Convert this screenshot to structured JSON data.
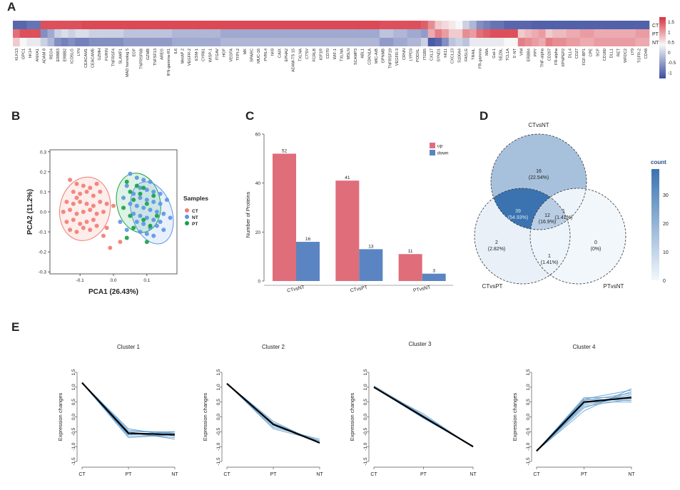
{
  "panels": {
    "a": "A",
    "b": "B",
    "c": "C",
    "d": "D",
    "e": "E"
  },
  "colors": {
    "ct": "#f07c74",
    "nt": "#5b95e6",
    "pt": "#16a046",
    "up": "#e06d7a",
    "down": "#5b85c2",
    "heat_high": "#d8323f",
    "heat_mid": "#f7f7f7",
    "heat_low": "#3b4da0",
    "venn_low": "#f2f7fc",
    "venn_high": "#3a73b0",
    "cluster_line": "#4a8ec4",
    "cluster_mean": "#000000"
  },
  "heatmap": {
    "rows": [
      "CT",
      "PT",
      "NT"
    ],
    "legend_ticks": [
      "1.5",
      "1",
      "0.5",
      "0",
      "-0.5",
      "-1"
    ],
    "columns": [
      "KLK13",
      "GPC1",
      "hK14",
      "ANXA1",
      "ADAM 8",
      "REG4",
      "ERBB3",
      "ERBB2",
      "ICOSLG",
      "LYN",
      "CEACAM1",
      "CEACAM5",
      "GZMH",
      "FURIN",
      "TNFRSF4",
      "SLAMF1",
      "MAD homolog 5",
      "EGF",
      "TNFRSF6B",
      "GZMB",
      "TNFSF13",
      "AREG",
      "IFN-gamma-R1",
      "IL6",
      "MetAP 2",
      "VEGFR-2",
      "ESM-1",
      "CYR61",
      "WISP-1",
      "ITGAV",
      "HGF",
      "VEGFA",
      "TFPI-2",
      "MK",
      "SPARC",
      "MUC-16",
      "PVRL4",
      "hK8",
      "CAIX",
      "EPHA2",
      "ADAM-TS 15",
      "TXLNA",
      "CTSV",
      "FCRLB",
      "IGF1R",
      "CD70",
      "WIF-1",
      "TXLNA",
      "MSLN",
      "SCAMP3",
      "ABL1",
      "CDKN1A",
      "MIC-A/B",
      "GPNMB",
      "TNFRSF19",
      "VEGFR-3",
      "CRNN",
      "LYPD3",
      "PODXL",
      "ITGB5",
      "CXL17",
      "SYND1",
      "hK11",
      "CXCL13",
      "S100A4",
      "FASLG",
      "TRAIL",
      "FR-gamma",
      "MIA",
      "Gal-1",
      "SEZ6L",
      "TCL1A",
      "5'-NT",
      "VIM",
      "ERBB4",
      "PPY",
      "TNF-alpha",
      "CD207",
      "FR-alpha",
      "XPNPEP2",
      "DLL4",
      "CD27",
      "FGF-BP1",
      "CPE",
      "SCF",
      "CD160",
      "DLL1",
      "RET",
      "WFDC2",
      "LY9",
      "TGFR-2",
      "CD48"
    ],
    "values": [
      [
        -1.1,
        -1.1,
        -1.0,
        -1.0,
        1.1,
        1.1,
        1.1,
        1.1,
        1.1,
        1.1,
        1.15,
        1.15,
        1.15,
        1.15,
        1.15,
        1.15,
        1.15,
        1.15,
        1.15,
        1.15,
        1.15,
        1.15,
        1.15,
        1.15,
        1.15,
        1.15,
        1.15,
        1.15,
        1.15,
        1.15,
        1.15,
        1.15,
        1.15,
        1.15,
        1.15,
        1.15,
        1.15,
        1.15,
        1.15,
        1.15,
        1.15,
        1.15,
        1.15,
        1.15,
        1.15,
        1.15,
        1.15,
        1.15,
        1.15,
        1.15,
        1.15,
        1.15,
        1.15,
        1.1,
        1.1,
        1.1,
        1.1,
        1.1,
        1.1,
        1.0,
        0.7,
        0.3,
        0.2,
        0.1,
        0.0,
        -0.3,
        -0.5,
        -0.8,
        -0.9,
        -1.0,
        -1.0,
        -1.1,
        -1.1,
        -1.1,
        -1.1,
        -1.15,
        -1.15,
        -1.15,
        -1.15,
        -1.15,
        -1.15,
        -1.15,
        -1.15,
        -1.15,
        -1.15,
        -1.15,
        -1.15,
        -1.15,
        -1.15,
        -1.15,
        -1.15,
        -1.15
      ],
      [
        0.9,
        1.1,
        1.1,
        1.1,
        -0.8,
        -0.6,
        -0.3,
        -0.2,
        -0.3,
        -0.2,
        -0.2,
        -0.3,
        -0.3,
        -0.3,
        -0.3,
        -0.3,
        -0.4,
        -0.4,
        -0.4,
        -0.4,
        -0.4,
        -0.4,
        -0.4,
        -0.5,
        -0.5,
        -0.5,
        -0.5,
        -0.5,
        -0.5,
        -0.5,
        -0.6,
        -0.6,
        -0.6,
        -0.6,
        -0.6,
        -0.6,
        -0.6,
        -0.6,
        -0.6,
        -0.6,
        -0.6,
        -0.6,
        -0.6,
        -0.6,
        -0.6,
        -0.6,
        -0.6,
        -0.6,
        -0.6,
        -0.6,
        -0.6,
        -0.6,
        -0.6,
        -0.4,
        -0.4,
        -0.5,
        -0.5,
        -0.6,
        -0.6,
        -0.7,
        0.5,
        0.8,
        0.6,
        0.3,
        0.3,
        0.7,
        0.6,
        0.9,
        1.0,
        1.1,
        1.1,
        1.1,
        1.1,
        0.3,
        0.4,
        0.5,
        0.6,
        0.3,
        0.4,
        0.4,
        0.5,
        0.5,
        0.6,
        0.6,
        0.5,
        0.5,
        0.5,
        0.5,
        0.5,
        0.5,
        0.6,
        0.6
      ],
      [
        0.3,
        0.0,
        -0.1,
        -0.1,
        -0.3,
        -0.5,
        -0.8,
        -0.9,
        -0.8,
        -0.9,
        -0.9,
        -0.8,
        -0.8,
        -0.8,
        -0.8,
        -0.8,
        -0.7,
        -0.7,
        -0.7,
        -0.7,
        -0.7,
        -0.7,
        -0.7,
        -0.6,
        -0.6,
        -0.6,
        -0.6,
        -0.6,
        -0.6,
        -0.6,
        -0.5,
        -0.5,
        -0.5,
        -0.5,
        -0.5,
        -0.5,
        -0.5,
        -0.5,
        -0.5,
        -0.5,
        -0.5,
        -0.5,
        -0.5,
        -0.5,
        -0.5,
        -0.5,
        -0.5,
        -0.5,
        -0.5,
        -0.5,
        -0.5,
        -0.5,
        -0.5,
        -0.7,
        -0.7,
        -0.6,
        -0.6,
        -0.5,
        -0.5,
        -0.3,
        -1.2,
        -1.1,
        -0.8,
        -0.4,
        -0.3,
        -0.4,
        -0.1,
        -0.1,
        -0.1,
        -0.1,
        -0.1,
        0.0,
        0.0,
        0.8,
        0.7,
        0.6,
        0.5,
        0.8,
        0.7,
        0.7,
        0.6,
        0.6,
        0.5,
        0.5,
        0.6,
        0.6,
        0.6,
        0.6,
        0.6,
        0.6,
        0.5,
        0.5
      ]
    ]
  },
  "chart_data": [
    {
      "type": "scatter",
      "panel": "B",
      "xlabel": "PCA1 (26.43%)",
      "ylabel": "PCA2 (11.2%)",
      "xlim": [
        -0.19,
        0.19
      ],
      "ylim": [
        -0.31,
        0.31
      ],
      "xticks": [
        "-0.1",
        "0.0",
        "0.1"
      ],
      "yticks": [
        "0.3",
        "0.2",
        "0.1",
        "0.0",
        "-0.1",
        "-0.2",
        "-0.3"
      ],
      "legend_title": "Samples",
      "legend": [
        "CT",
        "NT",
        "PT"
      ],
      "series": [
        {
          "name": "CT",
          "points": [
            [
              -0.13,
              0.16
            ],
            [
              -0.11,
              0.14
            ],
            [
              -0.09,
              0.13
            ],
            [
              -0.07,
              0.12
            ],
            [
              -0.05,
              0.14
            ],
            [
              -0.12,
              0.1
            ],
            [
              -0.1,
              0.09
            ],
            [
              -0.08,
              0.1
            ],
            [
              -0.06,
              0.08
            ],
            [
              -0.04,
              0.1
            ],
            [
              -0.14,
              0.05
            ],
            [
              -0.12,
              0.04
            ],
            [
              -0.1,
              0.05
            ],
            [
              -0.08,
              0.04
            ],
            [
              -0.06,
              0.03
            ],
            [
              -0.04,
              0.05
            ],
            [
              -0.02,
              0.04
            ],
            [
              -0.15,
              0.0
            ],
            [
              -0.13,
              0.01
            ],
            [
              -0.11,
              -0.01
            ],
            [
              -0.09,
              0.0
            ],
            [
              -0.07,
              0.01
            ],
            [
              -0.05,
              -0.01
            ],
            [
              -0.03,
              0.0
            ],
            [
              -0.14,
              -0.05
            ],
            [
              -0.12,
              -0.04
            ],
            [
              -0.1,
              -0.06
            ],
            [
              -0.08,
              -0.05
            ],
            [
              -0.06,
              -0.04
            ],
            [
              -0.13,
              -0.09
            ],
            [
              -0.11,
              -0.1
            ],
            [
              -0.09,
              -0.08
            ],
            [
              -0.07,
              -0.09
            ],
            [
              -0.05,
              -0.07
            ],
            [
              -0.03,
              -0.12
            ],
            [
              -0.01,
              -0.18
            ],
            [
              0.02,
              -0.15
            ],
            [
              -0.02,
              -0.08
            ],
            [
              0.0,
              0.03
            ],
            [
              -0.11,
              0.07
            ]
          ]
        },
        {
          "name": "NT",
          "points": [
            [
              0.05,
              0.19
            ],
            [
              0.07,
              0.17
            ],
            [
              0.09,
              0.16
            ],
            [
              0.11,
              0.15
            ],
            [
              0.08,
              0.12
            ],
            [
              0.1,
              0.11
            ],
            [
              0.12,
              0.1
            ],
            [
              0.14,
              0.09
            ],
            [
              0.06,
              0.09
            ],
            [
              0.08,
              0.07
            ],
            [
              0.1,
              0.06
            ],
            [
              0.12,
              0.05
            ],
            [
              0.14,
              0.04
            ],
            [
              0.05,
              0.04
            ],
            [
              0.07,
              0.03
            ],
            [
              0.09,
              0.02
            ],
            [
              0.11,
              0.01
            ],
            [
              0.13,
              0.0
            ],
            [
              0.15,
              -0.01
            ],
            [
              0.06,
              -0.01
            ],
            [
              0.08,
              -0.02
            ],
            [
              0.1,
              -0.03
            ],
            [
              0.12,
              -0.04
            ],
            [
              0.14,
              -0.05
            ],
            [
              0.07,
              -0.05
            ],
            [
              0.09,
              -0.06
            ],
            [
              0.11,
              -0.08
            ],
            [
              0.13,
              -0.07
            ],
            [
              0.15,
              -0.09
            ],
            [
              0.08,
              -0.1
            ],
            [
              0.1,
              -0.11
            ],
            [
              0.12,
              -0.12
            ],
            [
              0.03,
              0.07
            ],
            [
              0.04,
              -0.09
            ],
            [
              0.02,
              -0.05
            ],
            [
              0.16,
              0.06
            ],
            [
              0.17,
              -0.03
            ],
            [
              0.04,
              0.13
            ]
          ]
        },
        {
          "name": "PT",
          "points": [
            [
              0.04,
              0.15
            ],
            [
              0.07,
              0.13
            ],
            [
              0.09,
              0.12
            ],
            [
              0.05,
              0.1
            ],
            [
              0.08,
              0.09
            ],
            [
              0.06,
              0.06
            ],
            [
              0.03,
              0.02
            ],
            [
              0.1,
              0.04
            ],
            [
              0.12,
              0.08
            ],
            [
              0.05,
              -0.02
            ],
            [
              0.09,
              -0.04
            ],
            [
              0.06,
              -0.08
            ],
            [
              0.11,
              -0.07
            ],
            [
              0.04,
              -0.13
            ],
            [
              0.1,
              -0.15
            ],
            [
              0.13,
              -0.02
            ]
          ]
        }
      ]
    },
    {
      "type": "bar",
      "panel": "C",
      "categories": [
        "CTvsNT",
        "CTvsPT",
        "PTvsNT"
      ],
      "series": [
        {
          "name": "up",
          "values": [
            52,
            41,
            11
          ]
        },
        {
          "name": "down",
          "values": [
            16,
            13,
            3
          ]
        }
      ],
      "ylabel": "Number of Proteins",
      "xlabel": "",
      "ylim": [
        0,
        60
      ],
      "yticks": [
        "0",
        "20",
        "40",
        "60"
      ],
      "legend": [
        "up",
        "down"
      ]
    },
    {
      "type": "venn",
      "panel": "D",
      "sets": [
        "CTvsNT",
        "CTvsPT",
        "PTvsNT"
      ],
      "regions": [
        {
          "id": "ab",
          "label": "39",
          "pct": "(54.93%)",
          "value": 39
        },
        {
          "id": "a",
          "label": "16",
          "pct": "(22.54%)",
          "value": 16
        },
        {
          "id": "abc",
          "label": "12",
          "pct": "(16.9%)",
          "value": 12
        },
        {
          "id": "b",
          "label": "2",
          "pct": "(2.82%)",
          "value": 2
        },
        {
          "id": "ac",
          "label": "1",
          "pct": "(1.41%)",
          "value": 1
        },
        {
          "id": "bc",
          "label": "1",
          "pct": "(1.41%)",
          "value": 1
        },
        {
          "id": "c",
          "label": "0",
          "pct": "(0%)",
          "value": 0
        }
      ],
      "legend_title": "count",
      "legend_ticks": [
        "30",
        "20",
        "10",
        "0"
      ],
      "legend_max": 39
    },
    {
      "type": "line",
      "panel": "E",
      "ylabel": "Expression changes",
      "x": [
        "CT",
        "PT",
        "NT"
      ],
      "yticks": [
        "1.5",
        "1.0",
        "0.5",
        "0.0",
        "-0.5",
        "-1.0",
        "-1.5"
      ],
      "ylim": [
        -1.5,
        1.5
      ],
      "clusters": [
        {
          "title": "Cluster 1",
          "mean": [
            1.15,
            -0.55,
            -0.6
          ],
          "lines": [
            [
              1.15,
              -0.45,
              -0.55
            ],
            [
              1.15,
              -0.5,
              -0.5
            ],
            [
              1.15,
              -0.6,
              -0.55
            ],
            [
              1.15,
              -0.65,
              -0.6
            ],
            [
              1.15,
              -0.55,
              -0.7
            ],
            [
              1.14,
              -0.4,
              -0.65
            ],
            [
              1.15,
              -0.5,
              -0.75
            ],
            [
              1.16,
              -0.6,
              -0.5
            ],
            [
              1.15,
              -0.7,
              -0.6
            ]
          ]
        },
        {
          "title": "Cluster 2",
          "mean": [
            1.12,
            -0.25,
            -0.87
          ],
          "lines": [
            [
              1.12,
              -0.2,
              -0.85
            ],
            [
              1.12,
              -0.3,
              -0.8
            ],
            [
              1.12,
              -0.35,
              -0.75
            ],
            [
              1.12,
              -0.15,
              -0.9
            ],
            [
              1.11,
              -0.25,
              -0.85
            ],
            [
              1.13,
              -0.4,
              -0.8
            ]
          ]
        },
        {
          "title": "Cluster 3",
          "mean": [
            1.0,
            0.0,
            -1.0
          ],
          "lines": [
            [
              1.05,
              0.05,
              -1.0
            ],
            [
              1.0,
              -0.05,
              -0.98
            ],
            [
              0.98,
              0.1,
              -1.02
            ],
            [
              1.02,
              -0.02,
              -1.0
            ]
          ]
        },
        {
          "title": "Cluster 4",
          "mean": [
            -1.15,
            0.5,
            0.65
          ],
          "lines": [
            [
              -1.15,
              0.6,
              0.9
            ],
            [
              -1.15,
              0.55,
              0.8
            ],
            [
              -1.15,
              0.45,
              0.75
            ],
            [
              -1.15,
              0.4,
              0.7
            ],
            [
              -1.15,
              0.3,
              0.85
            ],
            [
              -1.15,
              0.6,
              0.55
            ],
            [
              -1.15,
              0.2,
              0.95
            ],
            [
              -1.12,
              0.35,
              0.6
            ],
            [
              -1.14,
              0.5,
              0.5
            ],
            [
              -1.15,
              0.65,
              0.65
            ]
          ]
        }
      ]
    }
  ]
}
